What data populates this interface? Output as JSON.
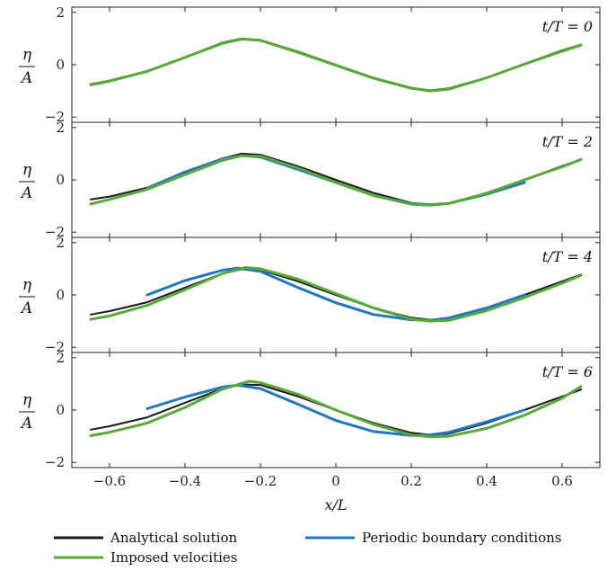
{
  "chart_data": {
    "type": "line",
    "xlabel": "x/L",
    "xlim": [
      -0.7,
      0.7
    ],
    "x_ticks": [
      -0.6,
      -0.4,
      -0.2,
      0,
      0.2,
      0.4,
      0.6
    ],
    "x_tick_labels": [
      "−0.6",
      "−0.4",
      "−0.2",
      "0",
      "0.2",
      "0.4",
      "0.6"
    ],
    "ylabel_num": "η",
    "ylabel_den": "A",
    "ylim": [
      -2.2,
      2.2
    ],
    "y_ticks": [
      -2,
      0,
      2
    ],
    "y_tick_labels": [
      "−2",
      "0",
      "2"
    ],
    "series_styles": [
      {
        "name": "Analytical solution",
        "color": "#1a1a1a"
      },
      {
        "name": "Periodic boundary conditions",
        "color": "#1f77c4"
      },
      {
        "name": "Imposed velocities",
        "color": "#5aa83a"
      }
    ],
    "legend": {
      "placement": "bottom",
      "items": [
        "Analytical solution",
        "Periodic boundary conditions",
        "Imposed velocities"
      ]
    },
    "panels": [
      {
        "label": "t/T = 0",
        "series": [
          {
            "name": "Analytical solution",
            "x": [
              -0.65,
              -0.6,
              -0.5,
              -0.4,
              -0.3,
              -0.25,
              -0.2,
              -0.1,
              0,
              0.1,
              0.2,
              0.25,
              0.3,
              0.4,
              0.5,
              0.6,
              0.65
            ],
            "y": [
              -0.78,
              -0.64,
              -0.26,
              0.29,
              0.85,
              1.0,
              0.95,
              0.5,
              0.0,
              -0.5,
              -0.88,
              -0.98,
              -0.9,
              -0.49,
              0.03,
              0.55,
              0.77
            ]
          },
          {
            "name": "Imposed velocities",
            "x": [
              -0.65,
              -0.6,
              -0.5,
              -0.4,
              -0.3,
              -0.25,
              -0.2,
              -0.1,
              0,
              0.1,
              0.2,
              0.25,
              0.3,
              0.4,
              0.5,
              0.6,
              0.65
            ],
            "y": [
              -0.75,
              -0.62,
              -0.25,
              0.28,
              0.82,
              0.98,
              0.93,
              0.47,
              -0.02,
              -0.52,
              -0.9,
              -1.0,
              -0.93,
              -0.5,
              0.02,
              0.52,
              0.75
            ]
          }
        ]
      },
      {
        "label": "t/T = 2",
        "series": [
          {
            "name": "Analytical solution",
            "x": [
              -0.65,
              -0.6,
              -0.5,
              -0.4,
              -0.3,
              -0.25,
              -0.2,
              -0.1,
              0,
              0.1,
              0.2,
              0.25,
              0.3,
              0.4,
              0.5,
              0.6,
              0.65
            ],
            "y": [
              -0.75,
              -0.64,
              -0.3,
              0.28,
              0.82,
              1.0,
              0.96,
              0.52,
              0.0,
              -0.5,
              -0.88,
              -0.97,
              -0.9,
              -0.5,
              0.0,
              0.53,
              0.77
            ]
          },
          {
            "name": "Periodic boundary conditions",
            "x": [
              -0.5,
              -0.4,
              -0.3,
              -0.25,
              -0.2,
              -0.1,
              0,
              0.1,
              0.2,
              0.25,
              0.3,
              0.4,
              0.5
            ],
            "y": [
              -0.32,
              0.3,
              0.8,
              0.93,
              0.87,
              0.4,
              -0.1,
              -0.6,
              -0.9,
              -0.95,
              -0.9,
              -0.55,
              -0.1
            ]
          },
          {
            "name": "Imposed velocities",
            "x": [
              -0.65,
              -0.6,
              -0.5,
              -0.4,
              -0.3,
              -0.25,
              -0.2,
              -0.1,
              0,
              0.1,
              0.2,
              0.25,
              0.3,
              0.4,
              0.5,
              0.6,
              0.65
            ],
            "y": [
              -0.92,
              -0.75,
              -0.36,
              0.2,
              0.75,
              0.92,
              0.9,
              0.45,
              -0.1,
              -0.6,
              -0.93,
              -0.97,
              -0.9,
              -0.52,
              0.0,
              0.5,
              0.78
            ]
          }
        ]
      },
      {
        "label": "t/T = 4",
        "series": [
          {
            "name": "Analytical solution",
            "x": [
              -0.65,
              -0.6,
              -0.5,
              -0.4,
              -0.3,
              -0.25,
              -0.2,
              -0.1,
              0,
              0.1,
              0.2,
              0.25,
              0.3,
              0.4,
              0.5,
              0.6,
              0.65
            ],
            "y": [
              -0.75,
              -0.62,
              -0.28,
              0.28,
              0.82,
              0.98,
              0.96,
              0.52,
              0.0,
              -0.5,
              -0.87,
              -0.95,
              -0.9,
              -0.5,
              0.0,
              0.52,
              0.78
            ]
          },
          {
            "name": "Periodic boundary conditions",
            "x": [
              -0.5,
              -0.4,
              -0.3,
              -0.26,
              -0.2,
              -0.1,
              0,
              0.1,
              0.2,
              0.25,
              0.3,
              0.4,
              0.5
            ],
            "y": [
              0.0,
              0.55,
              0.95,
              1.02,
              0.9,
              0.28,
              -0.3,
              -0.75,
              -0.95,
              -0.97,
              -0.88,
              -0.5,
              0.0
            ]
          },
          {
            "name": "Imposed velocities",
            "x": [
              -0.65,
              -0.6,
              -0.5,
              -0.4,
              -0.3,
              -0.24,
              -0.2,
              -0.1,
              0,
              0.1,
              0.2,
              0.25,
              0.3,
              0.4,
              0.5,
              0.6,
              0.65
            ],
            "y": [
              -0.93,
              -0.8,
              -0.4,
              0.2,
              0.82,
              1.05,
              1.0,
              0.6,
              0.05,
              -0.5,
              -0.92,
              -1.0,
              -0.97,
              -0.6,
              -0.1,
              0.45,
              0.75
            ]
          }
        ]
      },
      {
        "label": "t/T = 6",
        "series": [
          {
            "name": "Analytical solution",
            "x": [
              -0.65,
              -0.6,
              -0.5,
              -0.4,
              -0.3,
              -0.25,
              -0.2,
              -0.1,
              0,
              0.1,
              0.2,
              0.25,
              0.3,
              0.4,
              0.5,
              0.6,
              0.65
            ],
            "y": [
              -0.75,
              -0.62,
              -0.28,
              0.28,
              0.82,
              0.98,
              0.96,
              0.52,
              0.0,
              -0.5,
              -0.87,
              -0.95,
              -0.9,
              -0.5,
              0.0,
              0.52,
              0.78
            ]
          },
          {
            "name": "Periodic boundary conditions",
            "x": [
              -0.5,
              -0.4,
              -0.3,
              -0.26,
              -0.2,
              -0.1,
              0,
              0.1,
              0.2,
              0.25,
              0.3,
              0.4,
              0.5
            ],
            "y": [
              0.05,
              0.5,
              0.88,
              0.95,
              0.82,
              0.22,
              -0.4,
              -0.82,
              -0.97,
              -0.95,
              -0.85,
              -0.45,
              0.0
            ]
          },
          {
            "name": "Imposed velocities",
            "x": [
              -0.65,
              -0.6,
              -0.5,
              -0.4,
              -0.3,
              -0.23,
              -0.2,
              -0.1,
              0,
              0.1,
              0.2,
              0.25,
              0.3,
              0.4,
              0.5,
              0.6,
              0.65
            ],
            "y": [
              -0.98,
              -0.85,
              -0.5,
              0.1,
              0.8,
              1.1,
              1.05,
              0.6,
              0.0,
              -0.55,
              -0.95,
              -1.02,
              -1.0,
              -0.7,
              -0.2,
              0.45,
              0.9
            ]
          }
        ]
      }
    ]
  }
}
